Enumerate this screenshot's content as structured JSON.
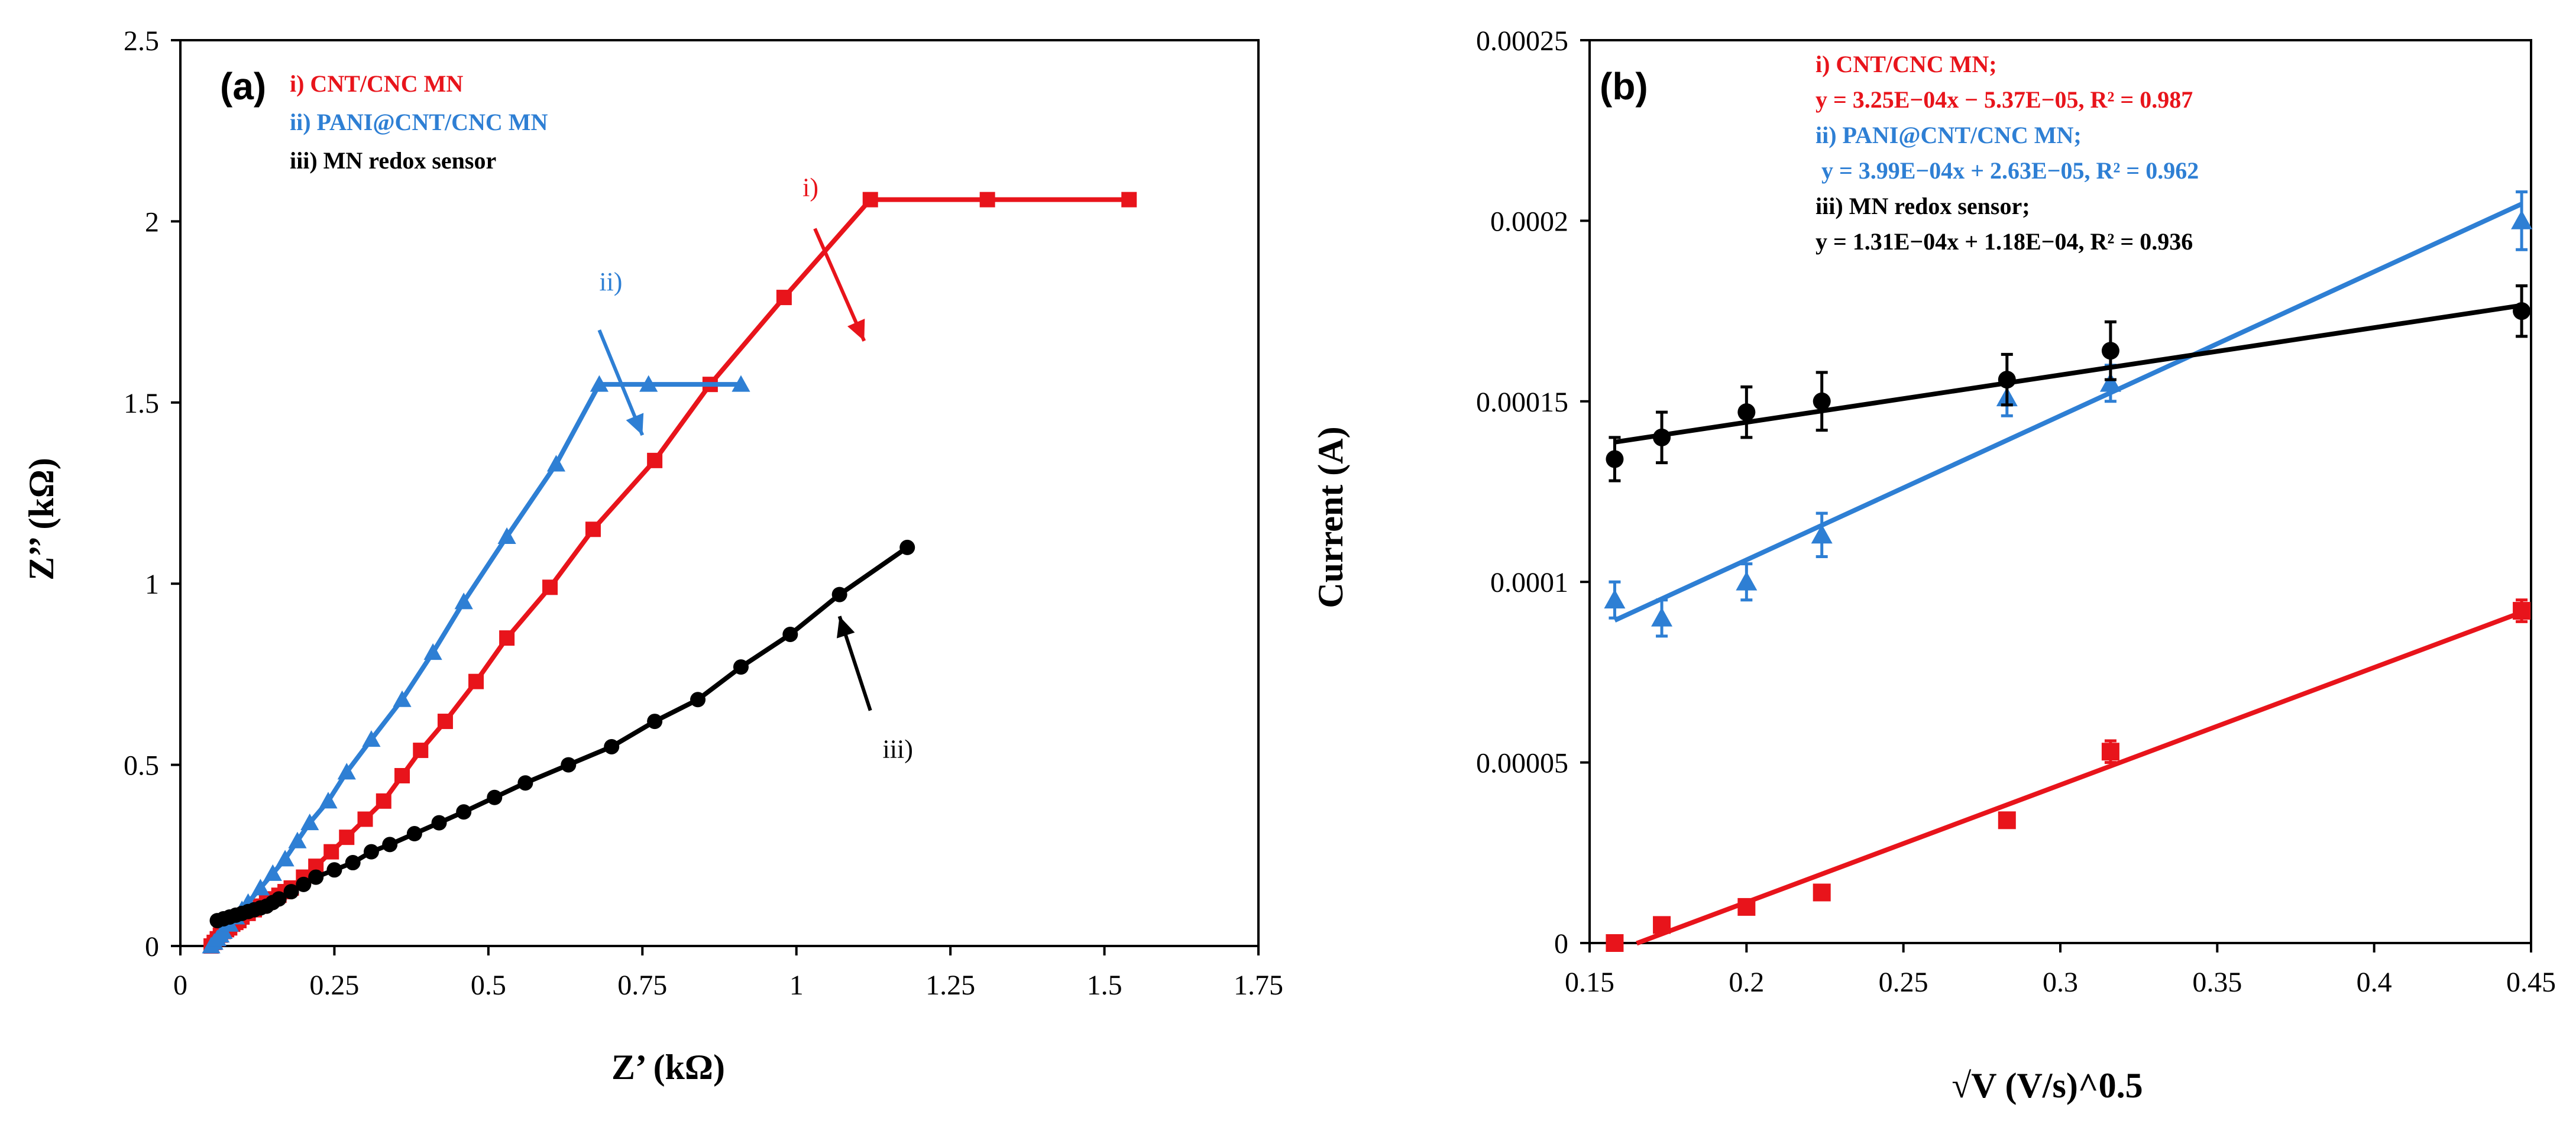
{
  "colors": {
    "red": "#e8141b",
    "blue": "#2e7fd4",
    "black": "#000000",
    "axis": "#000000"
  },
  "chart_data": [
    {
      "type": "scatter",
      "panel_label": "(a)",
      "title": "",
      "xlabel": "Z’ (kΩ)",
      "ylabel": "Z’’ (kΩ)",
      "xlim": [
        0,
        1.75
      ],
      "ylim": [
        0,
        2.5
      ],
      "x_ticks": [
        "0",
        "0.25",
        "0.5",
        "0.75",
        "1",
        "1.25",
        "1.5",
        "1.75"
      ],
      "y_ticks": [
        "0",
        "0.5",
        "1",
        "1.5",
        "2",
        "2.5"
      ],
      "legend": [
        {
          "label": "i) CNT/CNC MN",
          "color": "red"
        },
        {
          "label": "ii) PANI@CNT/CNC MN",
          "color": "blue"
        },
        {
          "label": "iii) MN redox sensor",
          "color": "black"
        }
      ],
      "annotations": [
        {
          "text": "i)",
          "color": "red",
          "x": 1.01,
          "y": 2.07,
          "tail": [
            1.03,
            1.98
          ],
          "head": [
            1.11,
            1.67
          ]
        },
        {
          "text": "ii)",
          "color": "blue",
          "x": 0.68,
          "y": 1.81,
          "tail": [
            0.68,
            1.7
          ],
          "head": [
            0.75,
            1.41
          ]
        },
        {
          "text": "iii)",
          "color": "black",
          "x": 1.14,
          "y": 0.52,
          "tail": [
            1.12,
            0.65
          ],
          "head": [
            1.07,
            0.91
          ]
        }
      ],
      "series": [
        {
          "name": "i) CNT/CNC MN",
          "color": "red",
          "marker": "square",
          "x": [
            0.05,
            0.055,
            0.06,
            0.065,
            0.07,
            0.075,
            0.08,
            0.085,
            0.09,
            0.095,
            0.1,
            0.11,
            0.12,
            0.13,
            0.14,
            0.15,
            0.16,
            0.17,
            0.18,
            0.2,
            0.22,
            0.245,
            0.27,
            0.3,
            0.33,
            0.36,
            0.39,
            0.43,
            0.48,
            0.53,
            0.6,
            0.67,
            0.77,
            0.86,
            0.98,
            1.12,
            1.31,
            1.54
          ],
          "y": [
            0.0,
            0.01,
            0.02,
            0.03,
            0.04,
            0.045,
            0.05,
            0.06,
            0.065,
            0.07,
            0.08,
            0.09,
            0.1,
            0.11,
            0.12,
            0.13,
            0.14,
            0.15,
            0.16,
            0.19,
            0.22,
            0.26,
            0.3,
            0.35,
            0.4,
            0.47,
            0.54,
            0.62,
            0.73,
            0.85,
            0.99,
            1.15,
            1.34,
            1.55,
            1.79,
            2.06,
            2.06,
            2.06
          ]
        },
        {
          "name": "ii) PANI@CNT/CNC MN",
          "color": "blue",
          "marker": "triangle",
          "x": [
            0.05,
            0.055,
            0.06,
            0.065,
            0.07,
            0.08,
            0.09,
            0.1,
            0.11,
            0.13,
            0.15,
            0.17,
            0.19,
            0.21,
            0.24,
            0.27,
            0.31,
            0.36,
            0.41,
            0.46,
            0.53,
            0.61,
            0.68,
            0.76,
            0.91
          ],
          "y": [
            0.0,
            0.01,
            0.02,
            0.03,
            0.04,
            0.06,
            0.08,
            0.1,
            0.12,
            0.16,
            0.2,
            0.24,
            0.29,
            0.34,
            0.4,
            0.48,
            0.57,
            0.68,
            0.81,
            0.95,
            1.13,
            1.33,
            1.55,
            1.55,
            1.55
          ]
        },
        {
          "name": "iii) MN redox sensor",
          "color": "black",
          "marker": "circle",
          "x": [
            0.06,
            0.07,
            0.08,
            0.09,
            0.1,
            0.11,
            0.12,
            0.13,
            0.14,
            0.15,
            0.16,
            0.18,
            0.2,
            0.22,
            0.25,
            0.28,
            0.31,
            0.34,
            0.38,
            0.42,
            0.46,
            0.51,
            0.56,
            0.63,
            0.7,
            0.77,
            0.84,
            0.91,
            0.99,
            1.07,
            1.18
          ],
          "y": [
            0.07,
            0.075,
            0.08,
            0.085,
            0.09,
            0.095,
            0.1,
            0.105,
            0.11,
            0.12,
            0.13,
            0.15,
            0.17,
            0.19,
            0.21,
            0.23,
            0.26,
            0.28,
            0.31,
            0.34,
            0.37,
            0.41,
            0.45,
            0.5,
            0.55,
            0.62,
            0.68,
            0.77,
            0.86,
            0.97,
            1.1
          ]
        }
      ]
    },
    {
      "type": "scatter",
      "panel_label": "(b)",
      "title": "",
      "xlabel": "√V (V/s)^0.5",
      "ylabel": "Current (A)",
      "xlim": [
        0.15,
        0.45
      ],
      "ylim": [
        0,
        0.00025
      ],
      "x_ticks": [
        "0.15",
        "0.2",
        "0.25",
        "0.3",
        "0.35",
        "0.4",
        "0.45"
      ],
      "y_ticks": [
        "0",
        "0.00005",
        "0.0001",
        "0.00015",
        "0.0002",
        "0.00025"
      ],
      "legend": [
        {
          "label": "i) CNT/CNC MN;",
          "equation": "y = 3.25E−04x − 5.37E−05, R² = 0.987",
          "color": "red"
        },
        {
          "label": "ii) PANI@CNT/CNC MN;",
          "equation": " y = 3.99E−04x + 2.63E−05, R² = 0.962",
          "color": "blue"
        },
        {
          "label": "iii) MN redox sensor;",
          "equation": "y = 1.31E−04x + 1.18E−04, R² = 0.936",
          "color": "black"
        }
      ],
      "series": [
        {
          "name": "i) CNT/CNC MN",
          "color": "red",
          "marker": "square",
          "x": [
            0.158,
            0.173,
            0.2,
            0.224,
            0.283,
            0.316,
            0.447
          ],
          "y": [
            0.0,
            5e-06,
            1e-05,
            1.4e-05,
            3.4e-05,
            5.3e-05,
            9.2e-05
          ],
          "err": [
            0.0,
            0.0,
            0.0,
            0.0,
            0.0,
            3e-06,
            3e-06
          ],
          "fit": {
            "slope": 0.000325,
            "intercept": -5.37e-05,
            "x_range": [
              0.165,
              0.447
            ]
          }
        },
        {
          "name": "ii) PANI@CNT/CNC MN",
          "color": "blue",
          "marker": "triangle",
          "x": [
            0.158,
            0.173,
            0.2,
            0.224,
            0.283,
            0.316,
            0.447
          ],
          "y": [
            9.5e-05,
            9e-05,
            0.0001,
            0.000113,
            0.000151,
            0.000155,
            0.0002
          ],
          "err": [
            5e-06,
            5e-06,
            5e-06,
            6e-06,
            5e-06,
            5e-06,
            8e-06
          ],
          "fit": {
            "slope": 0.000399,
            "intercept": 2.63e-05,
            "x_range": [
              0.158,
              0.447
            ]
          }
        },
        {
          "name": "iii) MN redox sensor",
          "color": "black",
          "marker": "circle",
          "x": [
            0.158,
            0.173,
            0.2,
            0.224,
            0.283,
            0.316,
            0.447
          ],
          "y": [
            0.000134,
            0.00014,
            0.000147,
            0.00015,
            0.000156,
            0.000164,
            0.000175
          ],
          "err": [
            6e-06,
            7e-06,
            7e-06,
            8e-06,
            7e-06,
            8e-06,
            7e-06
          ],
          "fit": {
            "slope": 0.000131,
            "intercept": 0.000118,
            "x_range": [
              0.158,
              0.447
            ]
          }
        }
      ]
    }
  ]
}
